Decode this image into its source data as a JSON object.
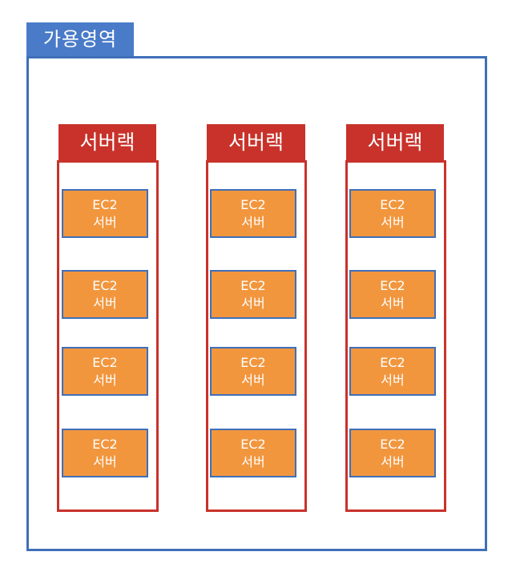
{
  "availability_zone": {
    "label": "가용영역",
    "border_color": "#3f6fb8",
    "label_bg": "#4a7bc9"
  },
  "racks": [
    {
      "label": "서버랙",
      "servers": [
        {
          "line1": "EC2",
          "line2": "서버"
        },
        {
          "line1": "EC2",
          "line2": "서버"
        },
        {
          "line1": "EC2",
          "line2": "서버"
        },
        {
          "line1": "EC2",
          "line2": "서버"
        }
      ]
    },
    {
      "label": "서버랙",
      "servers": [
        {
          "line1": "EC2",
          "line2": "서버"
        },
        {
          "line1": "EC2",
          "line2": "서버"
        },
        {
          "line1": "EC2",
          "line2": "서버"
        },
        {
          "line1": "EC2",
          "line2": "서버"
        }
      ]
    },
    {
      "label": "서버랙",
      "servers": [
        {
          "line1": "EC2",
          "line2": "서버"
        },
        {
          "line1": "EC2",
          "line2": "서버"
        },
        {
          "line1": "EC2",
          "line2": "서버"
        },
        {
          "line1": "EC2",
          "line2": "서버"
        }
      ]
    }
  ],
  "colors": {
    "rack": "#c8322a",
    "server_fill": "#f2963e",
    "server_border": "#3f6fb8"
  }
}
